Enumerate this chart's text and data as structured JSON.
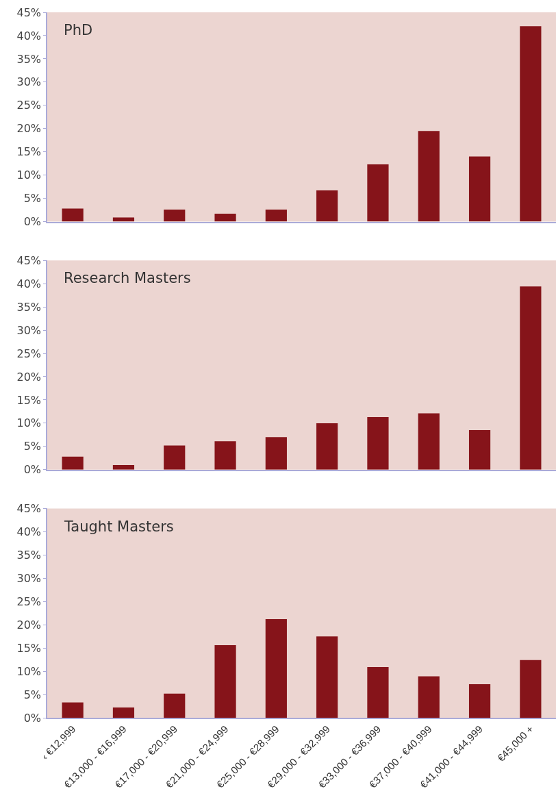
{
  "chart_data": [
    {
      "type": "bar",
      "title": "PhD",
      "categories": [
        null,
        null,
        null,
        null,
        null,
        null,
        null,
        null,
        null,
        null
      ],
      "values": [
        2.8,
        0.9,
        2.6,
        1.7,
        2.6,
        6.7,
        12.3,
        19.5,
        14.0,
        42.0
      ],
      "color": "#86141a",
      "ylim": [
        0,
        45
      ],
      "yticks": [
        {
          "value": 0,
          "label": "0%"
        },
        {
          "value": 5,
          "label": "5%"
        },
        {
          "value": 10,
          "label": "10%"
        },
        {
          "value": 15,
          "label": "15%"
        },
        {
          "value": 20,
          "label": "20%"
        },
        {
          "value": 25,
          "label": "25%"
        },
        {
          "value": 30,
          "label": "30%"
        },
        {
          "value": 35,
          "label": "35%"
        },
        {
          "value": 40,
          "label": "40%"
        },
        {
          "value": 45,
          "label": "45%"
        }
      ],
      "grid": false,
      "legend": false,
      "tick_labels": "y"
    },
    {
      "type": "bar",
      "title": "Research Masters",
      "categories": [
        null,
        null,
        null,
        null,
        null,
        null,
        null,
        null,
        null,
        null
      ],
      "values": [
        2.8,
        1.0,
        5.2,
        6.1,
        7.0,
        10.0,
        11.3,
        12.1,
        8.5,
        39.4
      ],
      "color": "#86141a",
      "ylim": [
        0,
        45
      ],
      "yticks": [
        {
          "value": 0,
          "label": "0%"
        },
        {
          "value": 5,
          "label": "5%"
        },
        {
          "value": 10,
          "label": "10%"
        },
        {
          "value": 15,
          "label": "15%"
        },
        {
          "value": 20,
          "label": "20%"
        },
        {
          "value": 25,
          "label": "25%"
        },
        {
          "value": 30,
          "label": "30%"
        },
        {
          "value": 35,
          "label": "35%"
        },
        {
          "value": 40,
          "label": "40%"
        },
        {
          "value": 45,
          "label": "45%"
        }
      ],
      "grid": false,
      "legend": false,
      "tick_labels": "y"
    },
    {
      "type": "bar",
      "title": "Taught Masters",
      "categories": [
        "‹ €12,999",
        "€13,000 - €16,999",
        "€17,000 - €20,999",
        "€21,000 - €24,999",
        "€25,000 - €28,999",
        "€29,000 - €32,999",
        "€33,000 - €36,999",
        "€37,000 - €40,999",
        "€41,000 - €44,999",
        "€45,000 +"
      ],
      "values": [
        3.3,
        2.2,
        5.2,
        15.6,
        21.2,
        17.5,
        10.9,
        8.9,
        7.2,
        12.4
      ],
      "color": "#86141a",
      "ylim": [
        0,
        45
      ],
      "yticks": [
        {
          "value": 0,
          "label": "0%"
        },
        {
          "value": 5,
          "label": "5%"
        },
        {
          "value": 10,
          "label": "10%"
        },
        {
          "value": 15,
          "label": "15%"
        },
        {
          "value": 20,
          "label": "20%"
        },
        {
          "value": 25,
          "label": "25%"
        },
        {
          "value": 30,
          "label": "30%"
        },
        {
          "value": 35,
          "label": "35%"
        },
        {
          "value": 40,
          "label": "40%"
        },
        {
          "value": 45,
          "label": "45%"
        }
      ],
      "grid": false,
      "legend": false
    }
  ]
}
